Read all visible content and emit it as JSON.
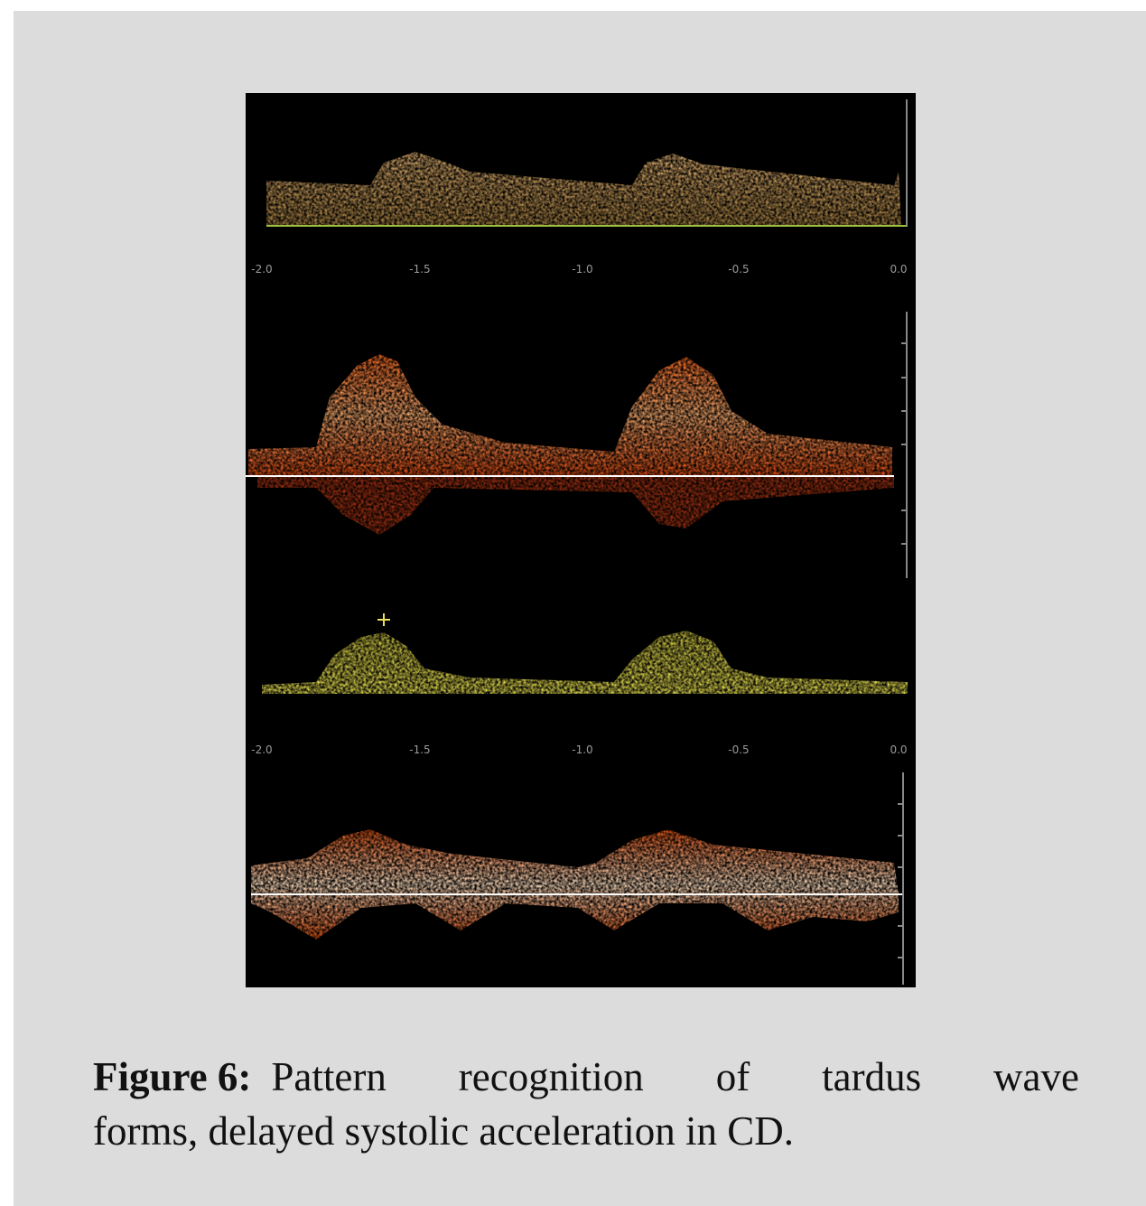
{
  "figure": {
    "axis_top_labels": [
      "-2.0",
      "-1.5",
      "-1.0",
      "-0.5",
      "0.0"
    ],
    "axis_bottom_labels": [
      "-2.0",
      "-1.5",
      "-1.0",
      "-0.5",
      "0.0"
    ]
  },
  "caption": {
    "label": "Figure 6:",
    "lines": [
      "Pattern recognition of tardus wave",
      "forms, delayed systolic acceleration in CD."
    ]
  }
}
